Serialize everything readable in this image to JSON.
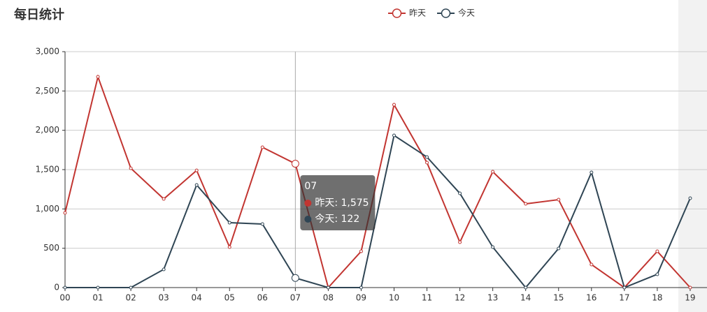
{
  "chart_data": {
    "type": "line",
    "title": "每日统计",
    "categories": [
      "00",
      "01",
      "02",
      "03",
      "04",
      "05",
      "06",
      "07",
      "08",
      "09",
      "10",
      "11",
      "12",
      "13",
      "14",
      "15",
      "16",
      "17",
      "18",
      "19"
    ],
    "series": [
      {
        "name": "昨天",
        "color": "#c23531",
        "values": [
          950,
          2680,
          1517,
          1127,
          1490,
          515,
          1784,
          1575,
          0,
          461,
          2325,
          1589,
          577,
          1473,
          1065,
          1118,
          293,
          0,
          461,
          0
        ]
      },
      {
        "name": "今天",
        "color": "#2f4554",
        "values": [
          0,
          0,
          0,
          231,
          1305,
          825,
          808,
          122,
          0,
          0,
          1935,
          1660,
          1198,
          515,
          0,
          497,
          1464,
          0,
          169,
          1136
        ]
      }
    ],
    "ylim": [
      0,
      3000
    ],
    "yticks": [
      0,
      500,
      {
        "value": 1000,
        "label": "1,000"
      },
      {
        "value": 1500,
        "label": "1,500"
      },
      {
        "value": 2000,
        "label": "2,000"
      },
      {
        "value": 2500,
        "label": "2,500"
      },
      {
        "value": 3000,
        "label": "3,000"
      }
    ],
    "grid": true,
    "legend": "top",
    "tooltip": {
      "title": "07",
      "items": [
        "昨天: 1,575",
        "今天: 122"
      ]
    }
  }
}
